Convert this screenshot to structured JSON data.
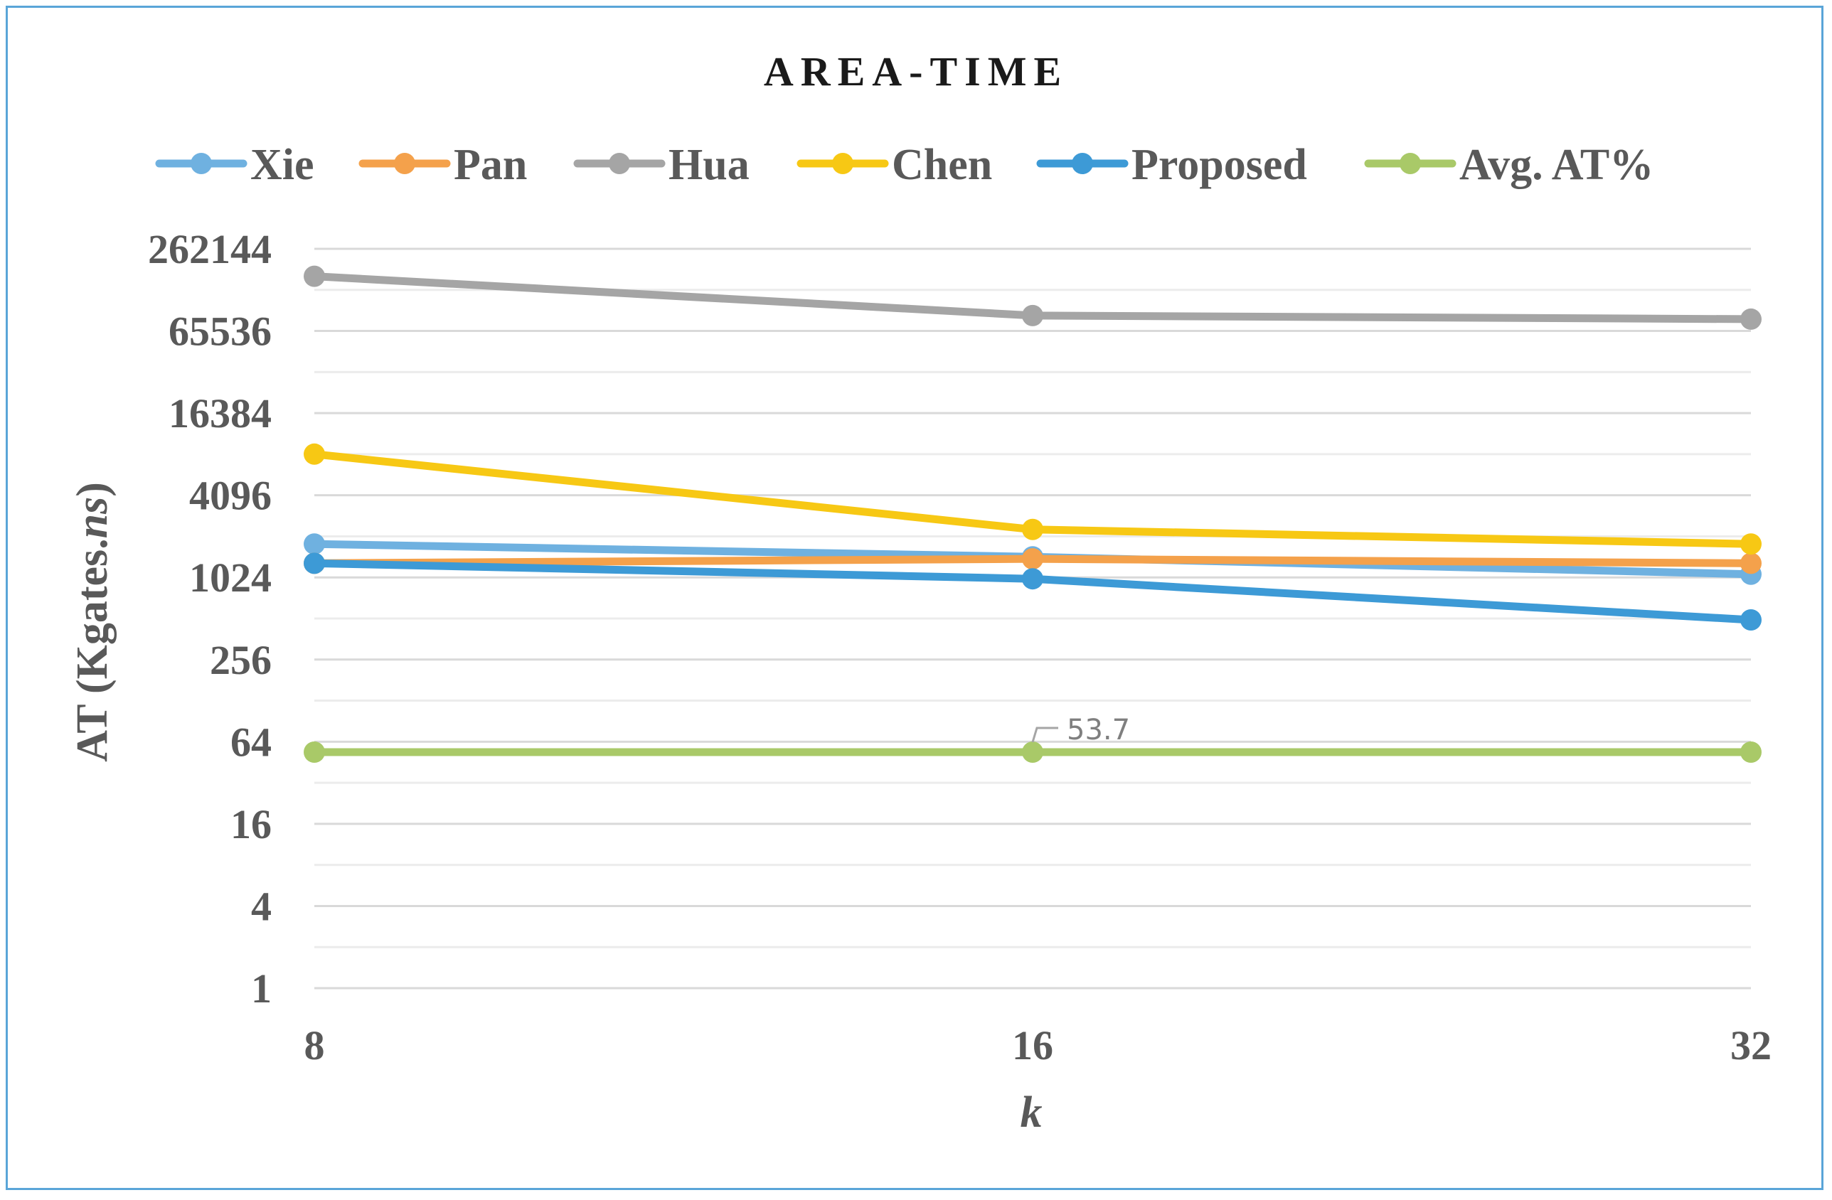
{
  "chart_data": {
    "type": "line",
    "title": "AREA-TIME",
    "xlabel": "k",
    "ylabel_main": "AT (Kgates.",
    "ylabel_italic": "ns",
    "ylabel_close": ")",
    "y_scale": "log2",
    "ylim": [
      1,
      262144
    ],
    "y_ticks": [
      "1",
      "4",
      "16",
      "64",
      "256",
      "1024",
      "4096",
      "16384",
      "65536",
      "262144"
    ],
    "x_ticks": [
      "8",
      "16",
      "32"
    ],
    "categories": [
      8,
      16,
      32
    ],
    "grid": true,
    "legend_position": "top",
    "series": [
      {
        "name": "Xie",
        "color": "#6fb1e0",
        "values": [
          1800,
          1450,
          1080
        ]
      },
      {
        "name": "Pan",
        "color": "#f4a14b",
        "values": [
          1300,
          1400,
          1300
        ]
      },
      {
        "name": "Hua",
        "color": "#a5a5a5",
        "values": [
          165000,
          85000,
          80000
        ]
      },
      {
        "name": "Chen",
        "color": "#f7c814",
        "values": [
          8200,
          2300,
          1800
        ]
      },
      {
        "name": "Proposed",
        "color": "#3d9ad6",
        "values": [
          1300,
          1000,
          500
        ]
      },
      {
        "name": "Avg. AT%",
        "color": "#a9c968",
        "values": [
          53.7,
          53.7,
          53.7
        ]
      }
    ],
    "annotations": [
      {
        "series": "Avg. AT%",
        "x": 16,
        "text": "53.7"
      }
    ]
  }
}
